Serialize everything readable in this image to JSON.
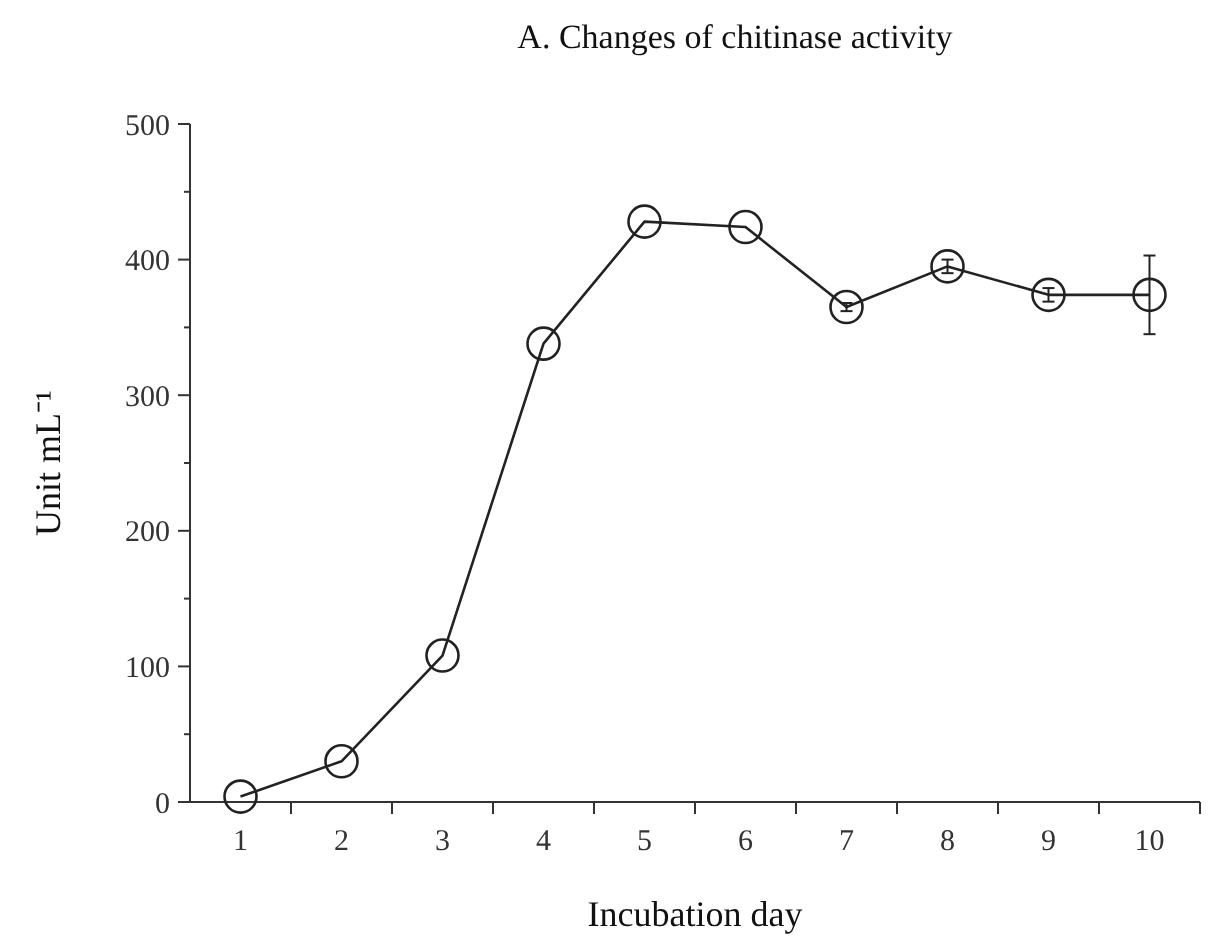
{
  "chart_data": {
    "type": "line",
    "title": "A. Changes of chitinase activity",
    "xlabel": "Incubation day",
    "ylabel": "Unit mL⁻¹",
    "categories": [
      "1",
      "2",
      "3",
      "4",
      "5",
      "6",
      "7",
      "8",
      "9",
      "10"
    ],
    "series": [
      {
        "color": "#222222",
        "values": [
          4,
          30,
          108,
          338,
          428,
          424,
          365,
          395,
          374,
          374
        ],
        "errors": [
          null,
          null,
          null,
          null,
          null,
          null,
          3,
          5,
          5,
          29
        ]
      }
    ],
    "ylim": [
      0,
      500
    ],
    "yticks": [
      0,
      {
        "value": 50,
        "label": null
      },
      100,
      {
        "value": 150,
        "label": null
      },
      200,
      {
        "value": 250,
        "label": null
      },
      300,
      {
        "value": 350,
        "label": null
      },
      400,
      {
        "value": 450,
        "label": null
      },
      500
    ],
    "marker": "circle",
    "line_style": "solid",
    "grid": false
  }
}
